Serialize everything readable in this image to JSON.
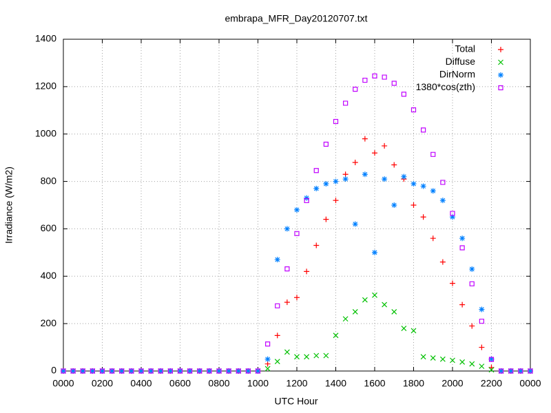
{
  "chart_data": {
    "type": "scatter",
    "title": "embrapa_MFR_Day20120707.txt",
    "x_label": "UTC Hour",
    "y_label": "Irradiance (W/m2)",
    "x": [
      0,
      0.5,
      1,
      1.5,
      2,
      2.5,
      3,
      3.5,
      4,
      4.5,
      5,
      5.5,
      6,
      6.5,
      7,
      7.5,
      8,
      8.5,
      9,
      9.5,
      10,
      10.5,
      11,
      11.5,
      12,
      12.5,
      13,
      13.5,
      14,
      14.5,
      15,
      15.5,
      16,
      16.5,
      17,
      17.5,
      18,
      18.5,
      19,
      19.5,
      20,
      20.5,
      21,
      21.5,
      22,
      22.5,
      23,
      23.5,
      24
    ],
    "series": [
      {
        "name": "Total",
        "color": "#ff0000",
        "marker": "plus",
        "values": [
          0,
          0,
          0,
          0,
          0,
          0,
          0,
          0,
          0,
          0,
          0,
          0,
          0,
          0,
          0,
          0,
          0,
          0,
          0,
          0,
          0,
          30,
          150,
          290,
          310,
          420,
          530,
          640,
          720,
          830,
          880,
          980,
          920,
          950,
          870,
          810,
          700,
          650,
          560,
          460,
          370,
          280,
          190,
          100,
          15,
          0,
          0,
          0,
          0
        ]
      },
      {
        "name": "Diffuse",
        "color": "#00c000",
        "marker": "cross",
        "values": [
          0,
          0,
          0,
          0,
          0,
          0,
          0,
          0,
          0,
          0,
          0,
          0,
          0,
          0,
          0,
          0,
          0,
          0,
          0,
          0,
          0,
          10,
          40,
          80,
          60,
          60,
          65,
          65,
          150,
          220,
          250,
          300,
          320,
          280,
          250,
          180,
          170,
          60,
          55,
          50,
          45,
          38,
          30,
          20,
          5,
          0,
          0,
          0,
          0
        ]
      },
      {
        "name": "DirNorm",
        "color": "#0080ff",
        "marker": "star",
        "values": [
          0,
          0,
          0,
          0,
          0,
          0,
          0,
          0,
          0,
          0,
          0,
          0,
          0,
          0,
          0,
          0,
          0,
          0,
          0,
          0,
          0,
          50,
          470,
          600,
          680,
          730,
          770,
          790,
          800,
          810,
          620,
          830,
          500,
          810,
          700,
          820,
          790,
          780,
          760,
          720,
          650,
          560,
          430,
          260,
          50,
          0,
          0,
          0,
          0
        ]
      },
      {
        "name": "1380*cos(zth)",
        "color": "#c000ff",
        "marker": "square",
        "values": [
          0,
          0,
          0,
          0,
          0,
          0,
          0,
          0,
          0,
          0,
          0,
          0,
          0,
          0,
          0,
          0,
          0,
          0,
          0,
          0,
          0,
          114,
          275,
          431,
          580,
          719,
          846,
          957,
          1053,
          1130,
          1189,
          1227,
          1245,
          1240,
          1214,
          1168,
          1102,
          1017,
          914,
          796,
          665,
          520,
          368,
          210,
          49,
          0,
          0,
          0,
          0
        ]
      }
    ],
    "xlim": [
      0,
      24
    ],
    "xticks": [
      {
        "value": 0,
        "label": "0000"
      },
      {
        "value": 2,
        "label": "0200"
      },
      {
        "value": 4,
        "label": "0400"
      },
      {
        "value": 6,
        "label": "0600"
      },
      {
        "value": 8,
        "label": "0800"
      },
      {
        "value": 10,
        "label": "1000"
      },
      {
        "value": 12,
        "label": "1200"
      },
      {
        "value": 14,
        "label": "1400"
      },
      {
        "value": 16,
        "label": "1600"
      },
      {
        "value": 18,
        "label": "1800"
      },
      {
        "value": 20,
        "label": "2000"
      },
      {
        "value": 22,
        "label": "2200"
      },
      {
        "value": 24,
        "label": "0000"
      }
    ],
    "ylim": [
      0,
      1400
    ],
    "yticks": [
      0,
      200,
      400,
      600,
      800,
      1000,
      1200,
      1400
    ],
    "grid": true,
    "legend": "top-right"
  }
}
